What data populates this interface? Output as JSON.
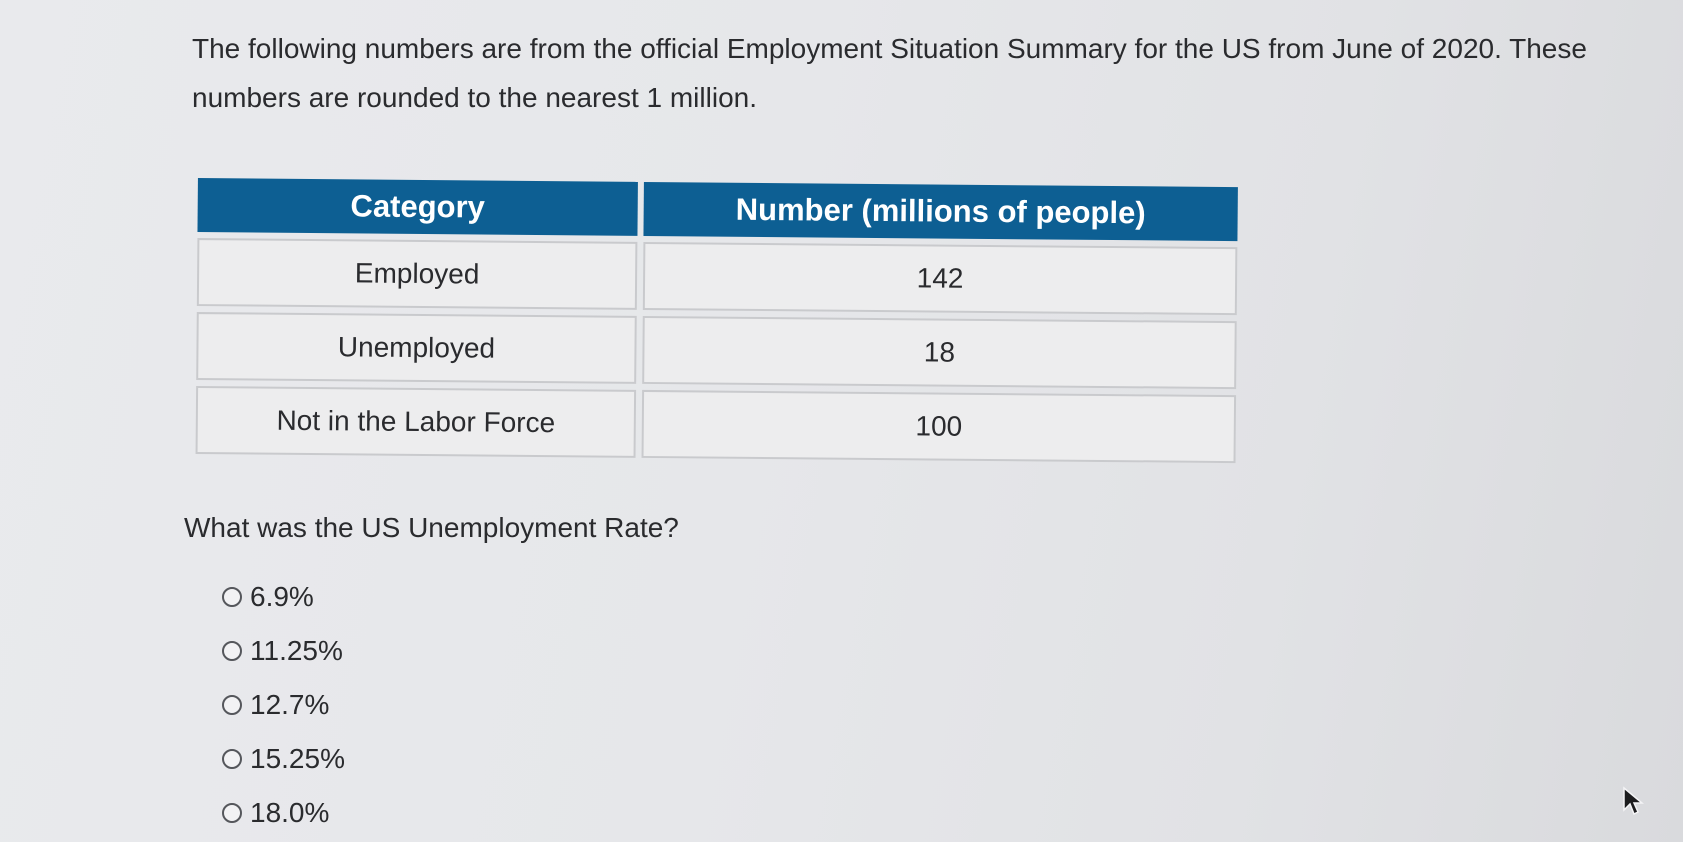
{
  "intro_text": "The following numbers are from the official Employment Situation Summary for the US from June of 2020. These numbers are rounded to the nearest 1 million.",
  "table": {
    "headers": [
      "Category",
      "Number (millions of people)"
    ],
    "rows": [
      {
        "category": "Employed",
        "number": "142"
      },
      {
        "category": "Unemployed",
        "number": "18"
      },
      {
        "category": "Not in the Labor Force",
        "number": "100"
      }
    ],
    "header_color": "#0d5f93"
  },
  "question": "What was the US Unemployment Rate?",
  "options": [
    {
      "label": "6.9%",
      "selected": false
    },
    {
      "label": "11.25%",
      "selected": false
    },
    {
      "label": "12.7%",
      "selected": false
    },
    {
      "label": "15.25%",
      "selected": false
    },
    {
      "label": "18.0%",
      "selected": false
    }
  ],
  "cursor": "arrow-cursor-icon"
}
